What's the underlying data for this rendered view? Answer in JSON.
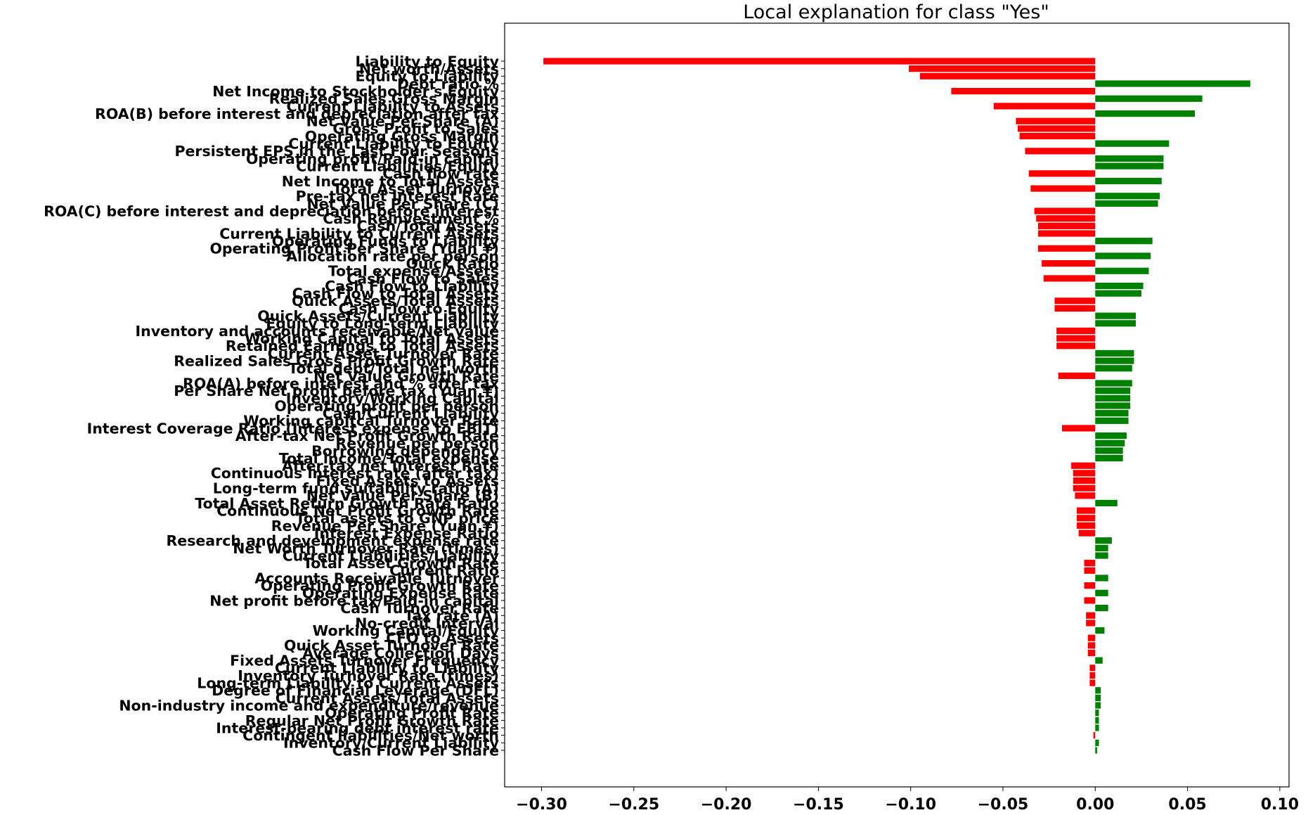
{
  "chart_data": {
    "type": "bar",
    "orientation": "horizontal",
    "title": "Local explanation for class \"Yes\"",
    "xlabel": "",
    "ylabel": "",
    "xlim": [
      -0.32,
      0.105
    ],
    "xticks": [
      -0.3,
      -0.25,
      -0.2,
      -0.15,
      -0.1,
      -0.05,
      0.0,
      0.05,
      0.1
    ],
    "xtick_labels": [
      "−0.30",
      "−0.25",
      "−0.20",
      "−0.15",
      "−0.10",
      "−0.05",
      "0.00",
      "0.05",
      "0.10"
    ],
    "grid": false,
    "legend": "none",
    "colors": {
      "positive": "#008000",
      "negative": "#ff0000"
    },
    "bars": [
      {
        "label": "Liability to Equity",
        "value": -0.299
      },
      {
        "label": "Net worth/Assets",
        "value": -0.101
      },
      {
        "label": "Equity to Liability",
        "value": -0.095
      },
      {
        "label": "Debt ratio %",
        "value": 0.084
      },
      {
        "label": "Net Income to Stockholder's Equity",
        "value": -0.078
      },
      {
        "label": "Realized Sales Gross Margin",
        "value": 0.058
      },
      {
        "label": "Current Liability to Assets",
        "value": -0.055
      },
      {
        "label": "ROA(B) before interest and depreciation after tax",
        "value": 0.054
      },
      {
        "label": "Net Value Per Share (A)",
        "value": -0.043
      },
      {
        "label": "Gross Profit to Sales",
        "value": -0.042
      },
      {
        "label": "Operating Gross Margin",
        "value": -0.041
      },
      {
        "label": "Current Liability to Equity",
        "value": 0.04
      },
      {
        "label": "Persistent EPS in the Last Four Seasons",
        "value": -0.038
      },
      {
        "label": "Operating profit/Paid-in capital",
        "value": 0.037
      },
      {
        "label": "Current Liabilities/Equity",
        "value": 0.037
      },
      {
        "label": "Cash flow rate",
        "value": -0.036
      },
      {
        "label": "Net Income to Total Assets",
        "value": 0.036
      },
      {
        "label": "Total Asset Turnover",
        "value": -0.035
      },
      {
        "label": "Pre-tax net Interest Rate",
        "value": 0.035
      },
      {
        "label": "Net Value Per Share (C)",
        "value": 0.034
      },
      {
        "label": "ROA(C) before interest and depreciation before interest",
        "value": -0.033
      },
      {
        "label": "Cash Reinvestment %",
        "value": -0.032
      },
      {
        "label": "Cash/Total Assets",
        "value": -0.031
      },
      {
        "label": "Current Liability to Current Assets",
        "value": -0.031
      },
      {
        "label": "Operating Funds to Liability",
        "value": 0.031
      },
      {
        "label": "Operating Profit Per Share (Yuan ¥)",
        "value": -0.031
      },
      {
        "label": "Allocation rate per person",
        "value": 0.03
      },
      {
        "label": "Quick Ratio",
        "value": -0.029
      },
      {
        "label": "Total expense/Assets",
        "value": 0.029
      },
      {
        "label": "Cash Flow to Sales",
        "value": -0.028
      },
      {
        "label": "Cash Flow to Liability",
        "value": 0.026
      },
      {
        "label": "Cash Flow to Total Assets",
        "value": 0.025
      },
      {
        "label": "Quick Assets/Total Assets",
        "value": -0.022
      },
      {
        "label": "Cash Flow to Equity",
        "value": -0.022
      },
      {
        "label": "Quick Assets/Current Liability",
        "value": 0.022
      },
      {
        "label": "Equity to Long-term Liability",
        "value": 0.022
      },
      {
        "label": "Inventory and accounts receivable/Net value",
        "value": -0.021
      },
      {
        "label": "Working Capital to Total Assets",
        "value": -0.021
      },
      {
        "label": "Retained Earnings to Total Assets",
        "value": -0.021
      },
      {
        "label": "Current Asset Turnover Rate",
        "value": 0.021
      },
      {
        "label": "Realized Sales Gross Profit Growth Rate",
        "value": 0.021
      },
      {
        "label": "Total debt/Total net worth",
        "value": 0.02
      },
      {
        "label": "Net Value Growth Rate",
        "value": -0.02
      },
      {
        "label": "ROA(A) before interest and % after tax",
        "value": 0.02
      },
      {
        "label": "Per Share Net profit before tax (Yuan ¥)",
        "value": 0.019
      },
      {
        "label": "Inventory/Working Capital",
        "value": 0.019
      },
      {
        "label": "Operating profit per person",
        "value": 0.019
      },
      {
        "label": "Cash/Current Liability",
        "value": 0.018
      },
      {
        "label": "Working capitcal Turnover Rate",
        "value": 0.018
      },
      {
        "label": "Interest Coverage Ratio (Interest expense to EBIT)",
        "value": -0.018
      },
      {
        "label": "After-tax Net Profit Growth Rate",
        "value": 0.017
      },
      {
        "label": "Revenue per person",
        "value": 0.016
      },
      {
        "label": "Borrowing dependency",
        "value": 0.015
      },
      {
        "label": "Total income/Total expense",
        "value": 0.015
      },
      {
        "label": "After-tax net Interest Rate",
        "value": -0.013
      },
      {
        "label": "Continuous interest rate (after tax)",
        "value": -0.012
      },
      {
        "label": "Fixed Assets to Assets",
        "value": -0.012
      },
      {
        "label": "Long-term fund suitability ratio (A)",
        "value": -0.012
      },
      {
        "label": "Net Value Per Share (B)",
        "value": -0.011
      },
      {
        "label": "Total Asset Return Growth Rate Ratio",
        "value": 0.012
      },
      {
        "label": "Continuous Net Profit Growth Rate",
        "value": -0.01
      },
      {
        "label": "Total assets to GNP price",
        "value": -0.01
      },
      {
        "label": "Revenue Per Share (Yuan ¥)",
        "value": -0.01
      },
      {
        "label": "Interest Expense Ratio",
        "value": -0.009
      },
      {
        "label": "Research and development expense rate",
        "value": 0.009
      },
      {
        "label": "Net Worth Turnover Rate (times)",
        "value": 0.007
      },
      {
        "label": "Current Liabilities/Liability",
        "value": 0.007
      },
      {
        "label": "Total Asset Growth Rate",
        "value": -0.006
      },
      {
        "label": "Current Ratio",
        "value": -0.006
      },
      {
        "label": "Accounts Receivable Turnover",
        "value": 0.007
      },
      {
        "label": "Operating Profit Growth Rate",
        "value": -0.006
      },
      {
        "label": "Operating Expense Rate",
        "value": 0.007
      },
      {
        "label": "Net profit before tax/Paid-in capital",
        "value": -0.006
      },
      {
        "label": "Cash Turnover Rate",
        "value": 0.007
      },
      {
        "label": "Tax rate (A)",
        "value": -0.005
      },
      {
        "label": "No-credit Interval",
        "value": -0.005
      },
      {
        "label": "Working Capital/Equity",
        "value": 0.005
      },
      {
        "label": "CFO to Assets",
        "value": -0.004
      },
      {
        "label": "Quick Asset Turnover Rate",
        "value": -0.004
      },
      {
        "label": "Average Collection Days",
        "value": -0.004
      },
      {
        "label": "Fixed Assets Turnover Frequency",
        "value": 0.004
      },
      {
        "label": "Current Liability to Liability",
        "value": -0.003
      },
      {
        "label": "Inventory Turnover Rate (times)",
        "value": -0.003
      },
      {
        "label": "Long-term Liability to Current Assets",
        "value": -0.003
      },
      {
        "label": "Degree of Financial Leverage (DFL)",
        "value": 0.003
      },
      {
        "label": "Current Assets/Total Assets",
        "value": 0.003
      },
      {
        "label": "Non-industry income and expenditure/revenue",
        "value": 0.003
      },
      {
        "label": "Operating Profit Rate",
        "value": 0.002
      },
      {
        "label": "Regular Net Profit Growth Rate",
        "value": 0.002
      },
      {
        "label": "Interest-bearing debt interest rate",
        "value": 0.002
      },
      {
        "label": "Contingent liabilities/Net worth",
        "value": -0.001
      },
      {
        "label": "Inventory/Current Liability",
        "value": 0.002
      },
      {
        "label": "Cash Flow Per Share",
        "value": 0.001
      }
    ]
  }
}
